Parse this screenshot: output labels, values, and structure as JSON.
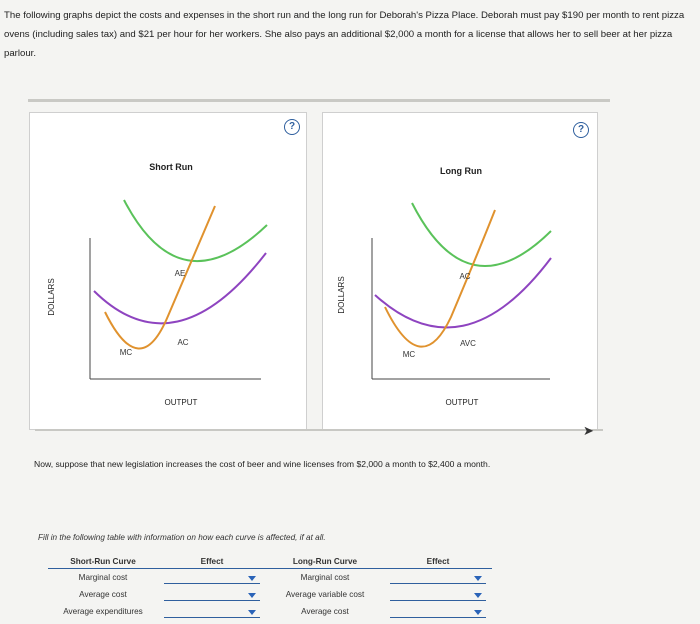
{
  "intro": "The following graphs depict the costs and expenses in the short run and the long run for Deborah's Pizza Place. Deborah must pay $190 per month to rent pizza ovens (including sales tax) and $21 per hour for her workers. She also pays an additional $2,000 a month for a license that allows her to sell beer at her pizza parlour.",
  "help_glyph": "?",
  "short_run": {
    "title": "Short Run",
    "y_axis": "DOLLARS",
    "x_axis": "OUTPUT",
    "labels": {
      "top_curve": "AE",
      "middle_curve": "AC",
      "mc": "MC"
    }
  },
  "long_run": {
    "title": "Long Run",
    "y_axis": "DOLLARS",
    "x_axis": "OUTPUT",
    "labels": {
      "top_curve": "AC",
      "middle_curve": "AVC",
      "mc": "MC"
    }
  },
  "colors": {
    "green": "#5ac25a",
    "orange": "#e0922e",
    "purple": "#8e44c0",
    "link": "#2f5f9e"
  },
  "question": "Now, suppose that new legislation increases the cost of beer and wine licenses from $2,000 a month to $2,400 a month.",
  "instruction": "Fill in the following table with information on how each curve is affected, if at all.",
  "table": {
    "headers": [
      "Short-Run Curve",
      "Effect",
      "Long-Run Curve",
      "Effect"
    ],
    "rows": [
      {
        "short": "Marginal cost",
        "short_effect": "",
        "long": "Marginal cost",
        "long_effect": ""
      },
      {
        "short": "Average cost",
        "short_effect": "",
        "long": "Average variable cost",
        "long_effect": ""
      },
      {
        "short": "Average expenditures",
        "short_effect": "",
        "long": "Average cost",
        "long_effect": ""
      }
    ]
  }
}
